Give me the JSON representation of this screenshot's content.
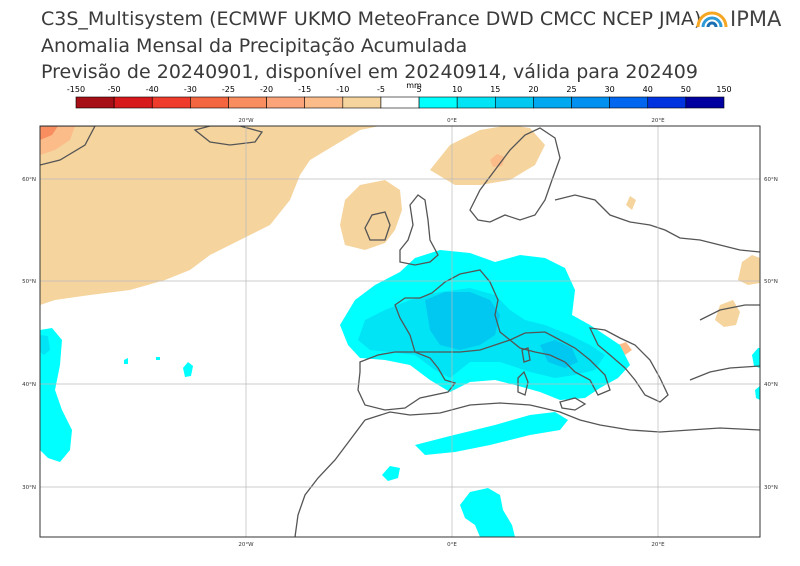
{
  "header": {
    "line1": "C3S_Multisystem  (ECMWF UKMO MeteoFrance DWD CMCC NCEP JMA)",
    "line2": "Anomalia Mensal da Precipitação Acumulada",
    "line3": "Previsão de 20240901, disponível em 20240914, válida para 202409"
  },
  "logo": {
    "text": "IPMA"
  },
  "colorbar": {
    "unit": "mm",
    "tick_labels": [
      "-150",
      "-50",
      "-40",
      "-30",
      "-25",
      "-20",
      "-15",
      "-10",
      "-5",
      "5",
      "10",
      "15",
      "20",
      "25",
      "30",
      "40",
      "50",
      "150"
    ],
    "colors": [
      "#a50f15",
      "#d7191c",
      "#ef3b2c",
      "#f4663f",
      "#f88d5f",
      "#fba47a",
      "#fbbc8a",
      "#f5d49e",
      "#ffffff",
      "#00ffff",
      "#00e4f5",
      "#00c8f0",
      "#00a8f0",
      "#0090f0",
      "#0066f0",
      "#0033e0",
      "#0000a0"
    ]
  },
  "map": {
    "lon_labels_top": [
      "20°W",
      "0°E",
      "20°E"
    ],
    "lon_labels_bottom": [
      "20°W",
      "0°E",
      "20°E"
    ],
    "lat_labels_left": [
      "60°N",
      "50°N",
      "40°N",
      "30°N"
    ],
    "lat_labels_right": [
      "60°N",
      "50°N",
      "40°N",
      "30°N"
    ],
    "colors": {
      "dry_light": "#f5d49e",
      "dry_mid": "#fbbc8a",
      "dry_strong": "#f88d5f",
      "wet_light": "#00ffff",
      "wet_mid": "#00e4f5",
      "wet_strong": "#00c8f0",
      "coast": "#555555",
      "grid": "#bbbbbb"
    }
  }
}
